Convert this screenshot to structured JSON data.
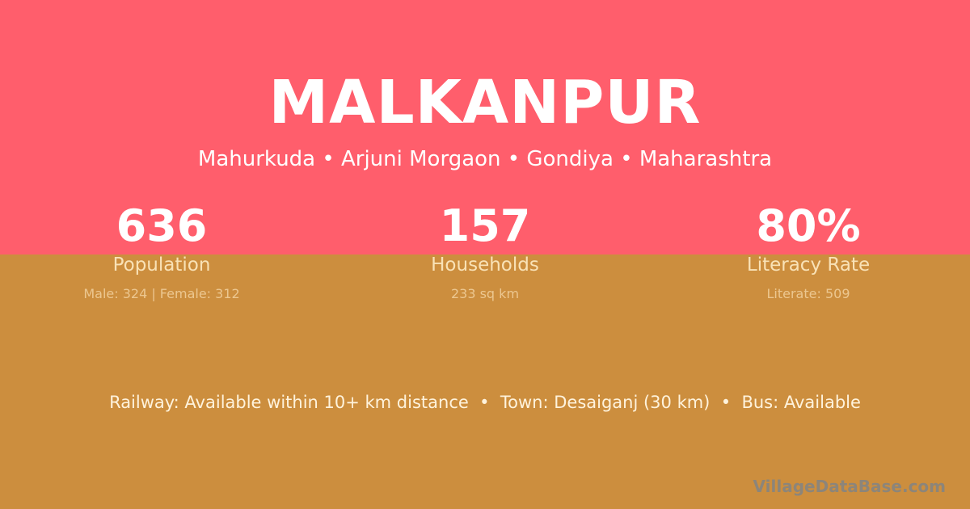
{
  "village": {
    "name": "MALKANPUR",
    "location": "Mahurkuda • Arjuni Morgaon • Gondiya • Maharashtra"
  },
  "stats": [
    {
      "value": "636",
      "label": "Population",
      "detail": "Male: 324 | Female: 312"
    },
    {
      "value": "157",
      "label": "Households",
      "detail": "233 sq km"
    },
    {
      "value": "80%",
      "label": "Literacy Rate",
      "detail": "Literate: 509"
    }
  ],
  "transport": "Railway: Available within 10+ km distance  •  Town: Desaiganj (30 km)  •  Bus: Available",
  "watermark": "VillageDataBase.com",
  "colors": {
    "top": "#ff5e6c",
    "bottom": "#cc8e3e"
  }
}
